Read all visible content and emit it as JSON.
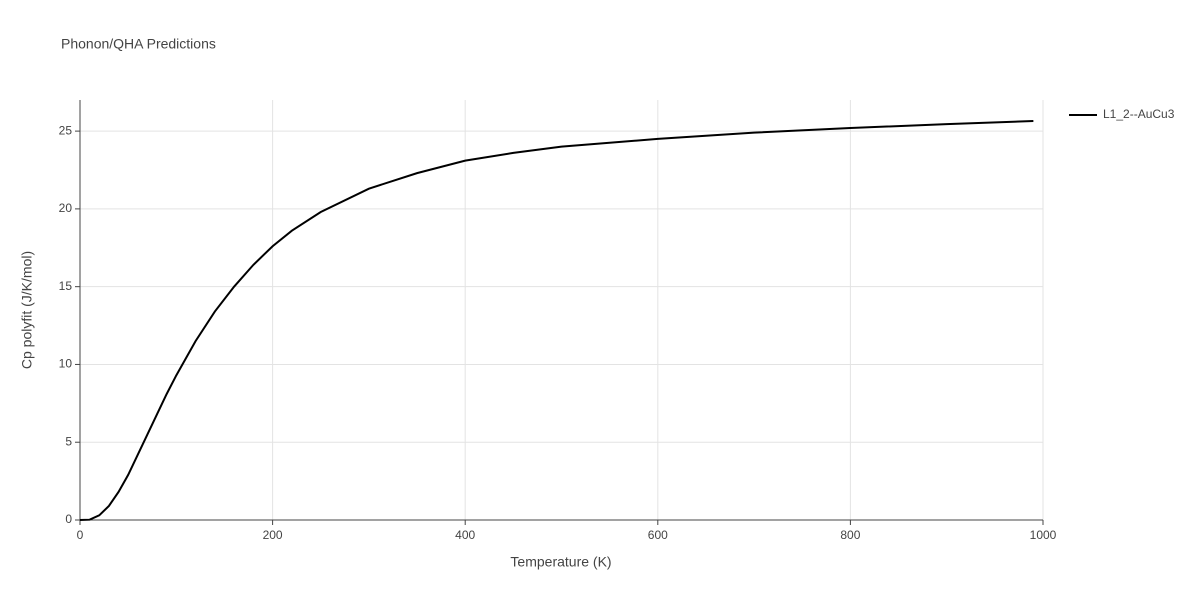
{
  "chart_data": {
    "type": "line",
    "title": "Phonon/QHA Predictions",
    "x_label": "Temperature (K)",
    "y_label": "Cp polyfit (J/K/mol)",
    "x": [
      0,
      10,
      20,
      30,
      40,
      50,
      60,
      70,
      80,
      90,
      100,
      120,
      140,
      160,
      180,
      200,
      220,
      250,
      300,
      350,
      400,
      450,
      500,
      600,
      700,
      800,
      900,
      990
    ],
    "series": [
      {
        "name": "L1_2--AuCu3",
        "color": "#000000",
        "values": [
          0,
          0.02,
          0.3,
          0.9,
          1.8,
          2.9,
          4.2,
          5.5,
          6.8,
          8.1,
          9.3,
          11.5,
          13.4,
          15.0,
          16.4,
          17.6,
          18.6,
          19.8,
          21.3,
          22.3,
          23.1,
          23.6,
          24.0,
          24.5,
          24.9,
          25.2,
          25.45,
          25.65
        ]
      }
    ],
    "xlim": [
      0,
      1000
    ],
    "xticks": [
      0,
      200,
      400,
      600,
      800,
      1000
    ],
    "ylim": [
      0,
      27
    ],
    "yticks": [
      0,
      5,
      10,
      15,
      20,
      25
    ],
    "grid": true
  }
}
